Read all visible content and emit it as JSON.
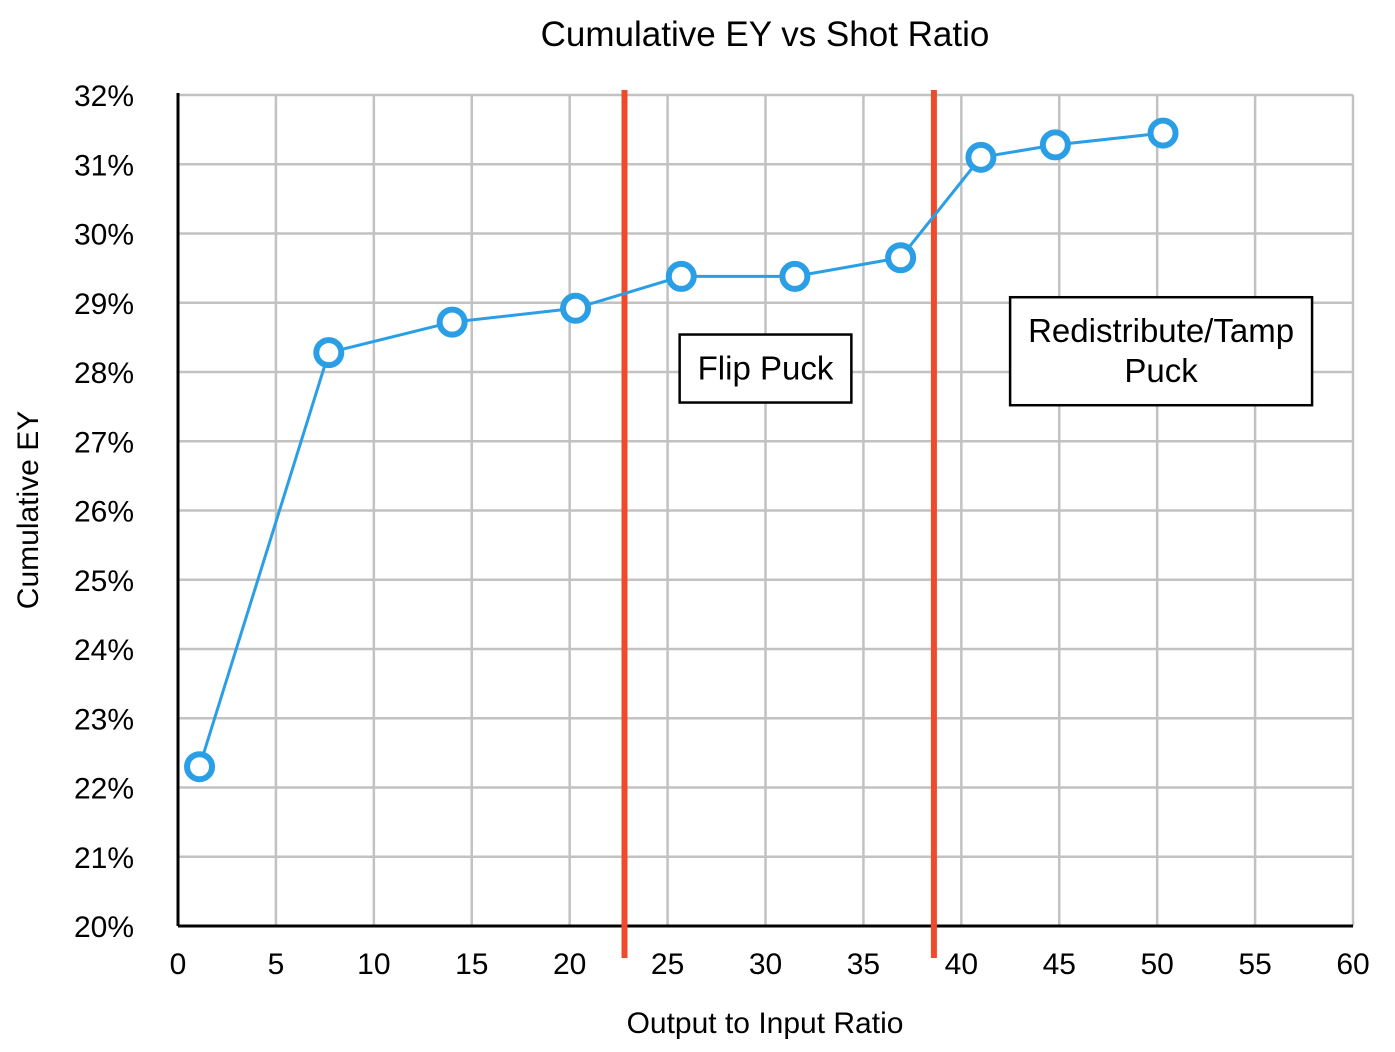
{
  "chart_data": {
    "type": "line",
    "title": "Cumulative EY vs Shot Ratio",
    "xlabel": "Output to Input Ratio",
    "ylabel": "Cumulative EY",
    "xlim": [
      0,
      60
    ],
    "ylim": [
      20,
      32
    ],
    "x_ticks": [
      0,
      5,
      10,
      15,
      20,
      25,
      30,
      35,
      40,
      45,
      50,
      55,
      60
    ],
    "y_ticks": [
      20,
      21,
      22,
      23,
      24,
      25,
      26,
      27,
      28,
      29,
      30,
      31,
      32
    ],
    "y_tick_labels": [
      "20%",
      "21%",
      "22%",
      "23%",
      "24%",
      "25%",
      "26%",
      "27%",
      "28%",
      "29%",
      "30%",
      "31%",
      "32%"
    ],
    "grid": true,
    "series": [
      {
        "x": [
          1.1,
          7.7,
          14.0,
          20.3,
          25.7,
          31.5,
          36.9,
          41.0,
          44.8,
          50.3
        ],
        "y": [
          22.3,
          28.28,
          28.72,
          28.92,
          29.38,
          29.38,
          29.65,
          31.1,
          31.28,
          31.45
        ],
        "color": "#2b9fe6"
      }
    ],
    "vertical_lines": [
      {
        "x": 22.8,
        "color": "#f04a2a"
      },
      {
        "x": 38.6,
        "color": "#f04a2a"
      }
    ],
    "annotations": [
      {
        "lines": [
          "Flip Puck"
        ],
        "x": 30,
        "y": 28.05
      },
      {
        "lines": [
          "Redistribute/Tamp",
          "Puck"
        ],
        "x": 50.2,
        "y": 28.3
      }
    ]
  }
}
